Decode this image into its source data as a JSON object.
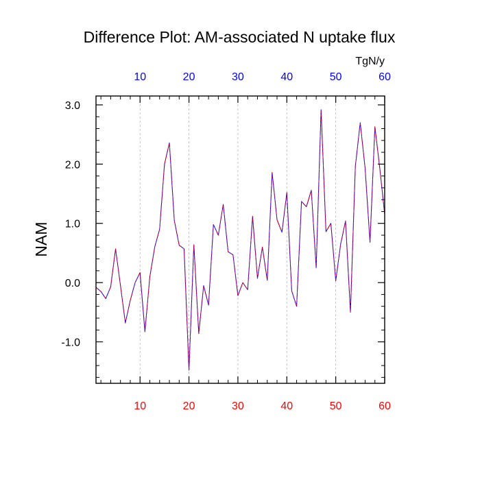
{
  "chart_data": {
    "type": "line",
    "title": "Difference Plot: AM-associated N uptake flux",
    "units_label": "TgN/y",
    "ylabel": "NAM",
    "xlim": [
      1,
      60
    ],
    "ylim": [
      -1.7,
      3.15
    ],
    "x_ticks": [
      "10",
      "20",
      "30",
      "40",
      "50",
      "60"
    ],
    "y_ticks": [
      "3.0",
      "2.0",
      "1.0",
      "0.0",
      "-1.0"
    ],
    "grid": "vertical dashed at major x ticks",
    "series": [
      {
        "x": [
          1,
          2,
          3,
          4,
          5,
          6,
          7,
          8,
          9,
          10,
          11,
          12,
          13,
          14,
          15,
          16,
          17,
          18,
          19,
          20,
          21,
          22,
          23,
          24,
          25,
          26,
          27,
          28,
          29,
          30,
          31,
          32,
          33,
          34,
          35,
          36,
          37,
          38,
          39,
          40,
          41,
          42,
          43,
          44,
          45,
          46,
          47,
          48,
          49,
          50,
          51,
          52,
          53,
          54,
          55,
          56,
          57,
          58,
          59,
          60
        ],
        "values": [
          -0.08,
          -0.15,
          -0.27,
          -0.07,
          0.57,
          -0.05,
          -0.68,
          -0.3,
          0.0,
          0.17,
          -0.83,
          0.1,
          0.6,
          0.9,
          2.0,
          2.36,
          1.05,
          0.63,
          0.57,
          -1.48,
          0.64,
          -0.86,
          -0.05,
          -0.38,
          0.98,
          0.8,
          1.32,
          0.52,
          0.47,
          -0.22,
          0.0,
          -0.12,
          1.12,
          0.07,
          0.6,
          0.04,
          1.86,
          1.06,
          0.85,
          1.52,
          -0.14,
          -0.4,
          1.37,
          1.28,
          1.56,
          0.25,
          2.92,
          0.86,
          1.0,
          0.03,
          0.65,
          1.04,
          -0.5,
          1.96,
          2.7,
          1.93,
          0.68,
          2.63,
          1.93,
          1.15
        ]
      }
    ],
    "colors": {
      "line_primary": "#0000ff",
      "line_overlay": "#ff0000",
      "bottom_tick_labels": "#ff0000",
      "top_tick_labels": "#0000ff",
      "grid": "#b4b4b4"
    }
  }
}
